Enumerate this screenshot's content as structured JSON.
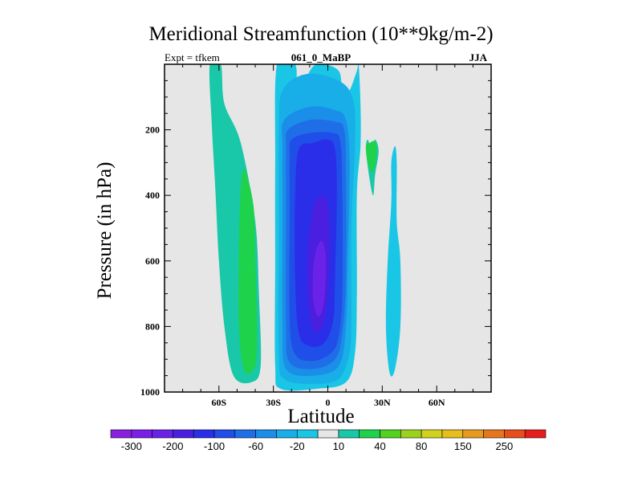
{
  "chart_data": {
    "type": "contour",
    "title": "Meridional Streamfunction (10**9kg/m-2)",
    "subtitle_left": "Expt = tfkem",
    "subtitle_center": "061_0_MaBP",
    "subtitle_right": "JJA",
    "xlabel": "Latitude",
    "ylabel": "Pressure (in hPa)",
    "xlim": [
      -90,
      90
    ],
    "ylim": [
      1000,
      0
    ],
    "x_ticks": [
      {
        "value": -60,
        "label": "60S"
      },
      {
        "value": -30,
        "label": "30S"
      },
      {
        "value": 0,
        "label": "0"
      },
      {
        "value": 30,
        "label": "30N"
      },
      {
        "value": 60,
        "label": "60N"
      }
    ],
    "y_ticks": [
      {
        "value": 200,
        "label": "200"
      },
      {
        "value": 400,
        "label": "400"
      },
      {
        "value": 600,
        "label": "600"
      },
      {
        "value": 800,
        "label": "800"
      },
      {
        "value": 1000,
        "label": "1000"
      }
    ],
    "background_color": "#e6e6e6",
    "colorbar": {
      "colors": [
        "#8a1fe0",
        "#7a1fe6",
        "#6a22e8",
        "#4a1fe0",
        "#2a2ee8",
        "#1f4ee8",
        "#1f6ee8",
        "#1a8ee8",
        "#19aee8",
        "#19c6e6",
        "#e6e6e6",
        "#19c8a8",
        "#1ed24c",
        "#52d21e",
        "#9cd21e",
        "#d2d21e",
        "#e6be1e",
        "#e69a1e",
        "#e6761e",
        "#e64e1e",
        "#e61e1e"
      ],
      "labels": [
        {
          "after_index": 0,
          "text": "-300"
        },
        {
          "after_index": 2,
          "text": "-200"
        },
        {
          "after_index": 4,
          "text": "-100"
        },
        {
          "after_index": 6,
          "text": "-60"
        },
        {
          "after_index": 8,
          "text": "-20"
        },
        {
          "after_index": 10,
          "text": "10"
        },
        {
          "after_index": 12,
          "text": "40"
        },
        {
          "after_index": 14,
          "text": "80"
        },
        {
          "after_index": 16,
          "text": "150"
        },
        {
          "after_index": 18,
          "text": "250"
        }
      ]
    },
    "regions": [
      {
        "name": "sh-cell-outer",
        "color": "#19c8a8",
        "points": [
          [
            -65,
            0
          ],
          [
            -59,
            0
          ],
          [
            -57,
            120
          ],
          [
            -48,
            240
          ],
          [
            -40,
            480
          ],
          [
            -38,
            700
          ],
          [
            -37,
            920
          ],
          [
            -42,
            970
          ],
          [
            -52,
            950
          ],
          [
            -57,
            800
          ],
          [
            -60,
            600
          ],
          [
            -62,
            380
          ],
          [
            -64,
            180
          ]
        ]
      },
      {
        "name": "sh-cell-inner",
        "color": "#1ed24c",
        "points": [
          [
            -46,
            320
          ],
          [
            -41,
            430
          ],
          [
            -40,
            600
          ],
          [
            -39,
            800
          ],
          [
            -40,
            920
          ],
          [
            -46,
            935
          ],
          [
            -49,
            800
          ],
          [
            -49,
            560
          ],
          [
            -48,
            380
          ]
        ]
      },
      {
        "name": "nh-green-blob",
        "color": "#19c8a8",
        "points": [
          [
            24,
            260
          ],
          [
            26,
            230
          ],
          [
            28,
            265
          ],
          [
            26,
            340
          ],
          [
            25,
            400
          ],
          [
            23,
            350
          ],
          [
            21,
            260
          ],
          [
            22,
            230
          ]
        ]
      },
      {
        "name": "nh-green-inner",
        "color": "#1ed24c",
        "points": [
          [
            23,
            240
          ],
          [
            26,
            235
          ],
          [
            27,
            265
          ],
          [
            25,
            330
          ],
          [
            22,
            300
          ],
          [
            21,
            250
          ]
        ]
      },
      {
        "name": "nh-cyan-right",
        "color": "#19c6e6",
        "points": [
          [
            37,
            250
          ],
          [
            38,
            300
          ],
          [
            38,
            480
          ],
          [
            40,
            600
          ],
          [
            40,
            800
          ],
          [
            37,
            930
          ],
          [
            34,
            940
          ],
          [
            32,
            800
          ],
          [
            33,
            600
          ],
          [
            35,
            420
          ],
          [
            35,
            300
          ]
        ]
      },
      {
        "name": "hadley-c1",
        "color": "#19c6e6",
        "points": [
          [
            -28,
            0
          ],
          [
            -18,
            0
          ],
          [
            -17,
            80
          ],
          [
            -12,
            40
          ],
          [
            -6,
            0
          ],
          [
            6,
            20
          ],
          [
            8,
            100
          ],
          [
            12,
            80
          ],
          [
            16,
            20
          ],
          [
            17,
            0
          ],
          [
            18,
            120
          ],
          [
            18,
            250
          ],
          [
            16,
            400
          ],
          [
            16,
            700
          ],
          [
            15,
            880
          ],
          [
            10,
            970
          ],
          [
            -6,
            990
          ],
          [
            -26,
            990
          ],
          [
            -29,
            920
          ],
          [
            -29,
            600
          ],
          [
            -29,
            300
          ]
        ]
      },
      {
        "name": "hadley-c2",
        "color": "#19aee8",
        "points": [
          [
            -25,
            80
          ],
          [
            -12,
            30
          ],
          [
            6,
            50
          ],
          [
            14,
            110
          ],
          [
            15,
            250
          ],
          [
            13,
            500
          ],
          [
            13,
            780
          ],
          [
            12,
            880
          ],
          [
            6,
            960
          ],
          [
            -8,
            975
          ],
          [
            -24,
            960
          ],
          [
            -27,
            880
          ],
          [
            -27,
            500
          ],
          [
            -27,
            200
          ]
        ]
      },
      {
        "name": "hadley-c3",
        "color": "#1a8ee8",
        "points": [
          [
            -24,
            170
          ],
          [
            -10,
            130
          ],
          [
            4,
            140
          ],
          [
            10,
            170
          ],
          [
            12,
            300
          ],
          [
            11,
            600
          ],
          [
            10,
            800
          ],
          [
            6,
            920
          ],
          [
            -8,
            950
          ],
          [
            -23,
            930
          ],
          [
            -25,
            800
          ],
          [
            -25,
            500
          ],
          [
            -25,
            260
          ]
        ]
      },
      {
        "name": "hadley-c4",
        "color": "#1f6ee8",
        "points": [
          [
            -22,
            200
          ],
          [
            -10,
            170
          ],
          [
            4,
            175
          ],
          [
            9,
            200
          ],
          [
            10,
            330
          ],
          [
            10,
            650
          ],
          [
            8,
            820
          ],
          [
            4,
            900
          ],
          [
            -8,
            930
          ],
          [
            -21,
            910
          ],
          [
            -23,
            800
          ],
          [
            -23,
            450
          ],
          [
            -23,
            260
          ]
        ]
      },
      {
        "name": "hadley-c5",
        "color": "#1f4ee8",
        "points": [
          [
            -20,
            230
          ],
          [
            -10,
            210
          ],
          [
            3,
            210
          ],
          [
            7,
            240
          ],
          [
            8,
            400
          ],
          [
            8,
            700
          ],
          [
            6,
            830
          ],
          [
            2,
            880
          ],
          [
            -8,
            905
          ],
          [
            -18,
            885
          ],
          [
            -21,
            780
          ],
          [
            -21,
            450
          ],
          [
            -21,
            280
          ]
        ]
      },
      {
        "name": "hadley-c6",
        "color": "#2a2ee8",
        "points": [
          [
            -16,
            260
          ],
          [
            -8,
            240
          ],
          [
            0,
            230
          ],
          [
            4,
            260
          ],
          [
            5,
            400
          ],
          [
            4,
            640
          ],
          [
            3,
            780
          ],
          [
            -2,
            850
          ],
          [
            -10,
            860
          ],
          [
            -16,
            820
          ],
          [
            -18,
            650
          ],
          [
            -18,
            400
          ]
        ]
      },
      {
        "name": "hadley-c7",
        "color": "#4a1fe0",
        "points": [
          [
            -8,
            440
          ],
          [
            -4,
            400
          ],
          [
            0,
            430
          ],
          [
            1,
            550
          ],
          [
            0,
            700
          ],
          [
            -3,
            800
          ],
          [
            -8,
            810
          ],
          [
            -11,
            720
          ],
          [
            -11,
            560
          ]
        ]
      },
      {
        "name": "hadley-c8",
        "color": "#6a22e8",
        "points": [
          [
            -6,
            560
          ],
          [
            -3,
            540
          ],
          [
            -1,
            600
          ],
          [
            -2,
            720
          ],
          [
            -5,
            770
          ],
          [
            -8,
            720
          ],
          [
            -8,
            620
          ]
        ]
      }
    ]
  }
}
